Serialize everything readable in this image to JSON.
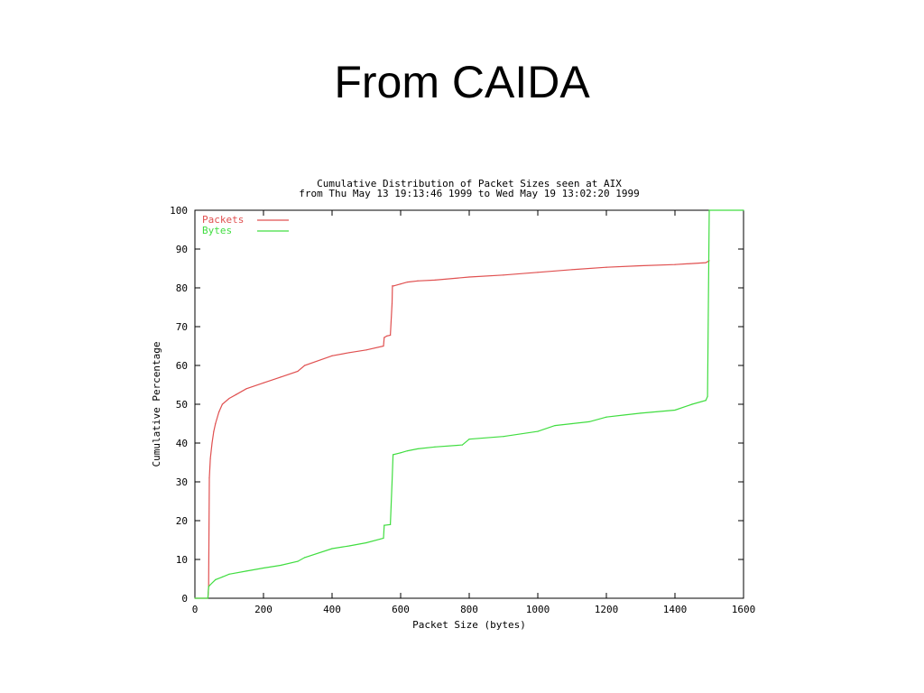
{
  "slide": {
    "title": "From CAIDA"
  },
  "chart_data": {
    "type": "line",
    "title": "Cumulative Distribution of Packet Sizes seen at AIX",
    "subtitle": "from Thu May 13 19:13:46 1999 to Wed May 19 13:02:20 1999",
    "xlabel": "Packet Size (bytes)",
    "ylabel": "Cumulative Percentage",
    "xlim": [
      0,
      1600
    ],
    "ylim": [
      0,
      100
    ],
    "xticks": [
      0,
      200,
      400,
      600,
      800,
      1000,
      1200,
      1400,
      1600
    ],
    "yticks": [
      0,
      10,
      20,
      30,
      40,
      50,
      60,
      70,
      80,
      90,
      100
    ],
    "grid": false,
    "legend": "top-left",
    "series": [
      {
        "name": "Packets",
        "color": "#e05050",
        "x": [
          0,
          38,
          40,
          42,
          45,
          50,
          55,
          60,
          70,
          80,
          100,
          120,
          150,
          200,
          250,
          300,
          320,
          400,
          450,
          500,
          550,
          552,
          560,
          570,
          575,
          576,
          580,
          600,
          620,
          650,
          700,
          800,
          900,
          1000,
          1100,
          1200,
          1300,
          1400,
          1490,
          1500
        ],
        "y": [
          0,
          0,
          3,
          31,
          36,
          40,
          43,
          45,
          48,
          50,
          51.5,
          52.5,
          54,
          55.5,
          57,
          58.5,
          60,
          62.5,
          63.3,
          64,
          65,
          67.2,
          67.6,
          67.8,
          76,
          80.5,
          80.5,
          81,
          81.5,
          81.8,
          82,
          82.8,
          83.3,
          84,
          84.7,
          85.3,
          85.7,
          86,
          86.5,
          87
        ]
      },
      {
        "name": "Bytes",
        "color": "#40dd40",
        "x": [
          0,
          38,
          40,
          45,
          60,
          80,
          100,
          150,
          200,
          250,
          300,
          320,
          400,
          450,
          500,
          550,
          552,
          570,
          575,
          578,
          600,
          620,
          650,
          700,
          780,
          800,
          900,
          1000,
          1050,
          1100,
          1150,
          1200,
          1250,
          1300,
          1400,
          1450,
          1490,
          1495,
          1500,
          1600
        ],
        "y": [
          0,
          0,
          3,
          3.5,
          4.8,
          5.5,
          6.2,
          7,
          7.8,
          8.5,
          9.5,
          10.5,
          12.8,
          13.5,
          14.3,
          15.5,
          18.8,
          19,
          30,
          37,
          37.5,
          38,
          38.5,
          39,
          39.5,
          41,
          41.7,
          43,
          44.5,
          45,
          45.5,
          46.7,
          47.2,
          47.7,
          48.5,
          50,
          51,
          52,
          100,
          100
        ]
      }
    ]
  }
}
